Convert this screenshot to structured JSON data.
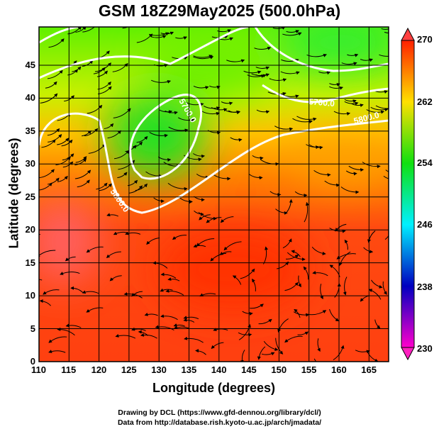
{
  "title": "GSM 18Z29May2025 (500.0hPa)",
  "xaxis": {
    "label": "Longitude (degrees)",
    "ticks": [
      "110",
      "115",
      "120",
      "125",
      "130",
      "135",
      "140",
      "145",
      "150",
      "155",
      "160",
      "165"
    ]
  },
  "yaxis": {
    "label": "Latitude  (degrees)",
    "ticks": [
      "0",
      "5",
      "10",
      "15",
      "20",
      "25",
      "30",
      "35",
      "40",
      "45"
    ]
  },
  "colorbar": {
    "ticks": [
      "270",
      "262",
      "254",
      "246",
      "238",
      "230"
    ],
    "range": [
      230,
      270
    ],
    "colors": [
      "#ff00cc",
      "#7000a0",
      "#0000c0",
      "#0070ff",
      "#00f0ff",
      "#00ff90",
      "#10e010",
      "#80ff00",
      "#ffff00",
      "#ffa000",
      "#ff2000"
    ]
  },
  "contours": {
    "color": "#ffffff",
    "labels": [
      "5700.0",
      "5800.0",
      "5800.0",
      "5700.0",
      "5800.0"
    ]
  },
  "credits": [
    "Drawing by DCL (https://www.gfd-dennou.org/library/dcl/)",
    "Data from http://database.rish.kyoto-u.ac.jp/arch/jmadata/"
  ]
}
